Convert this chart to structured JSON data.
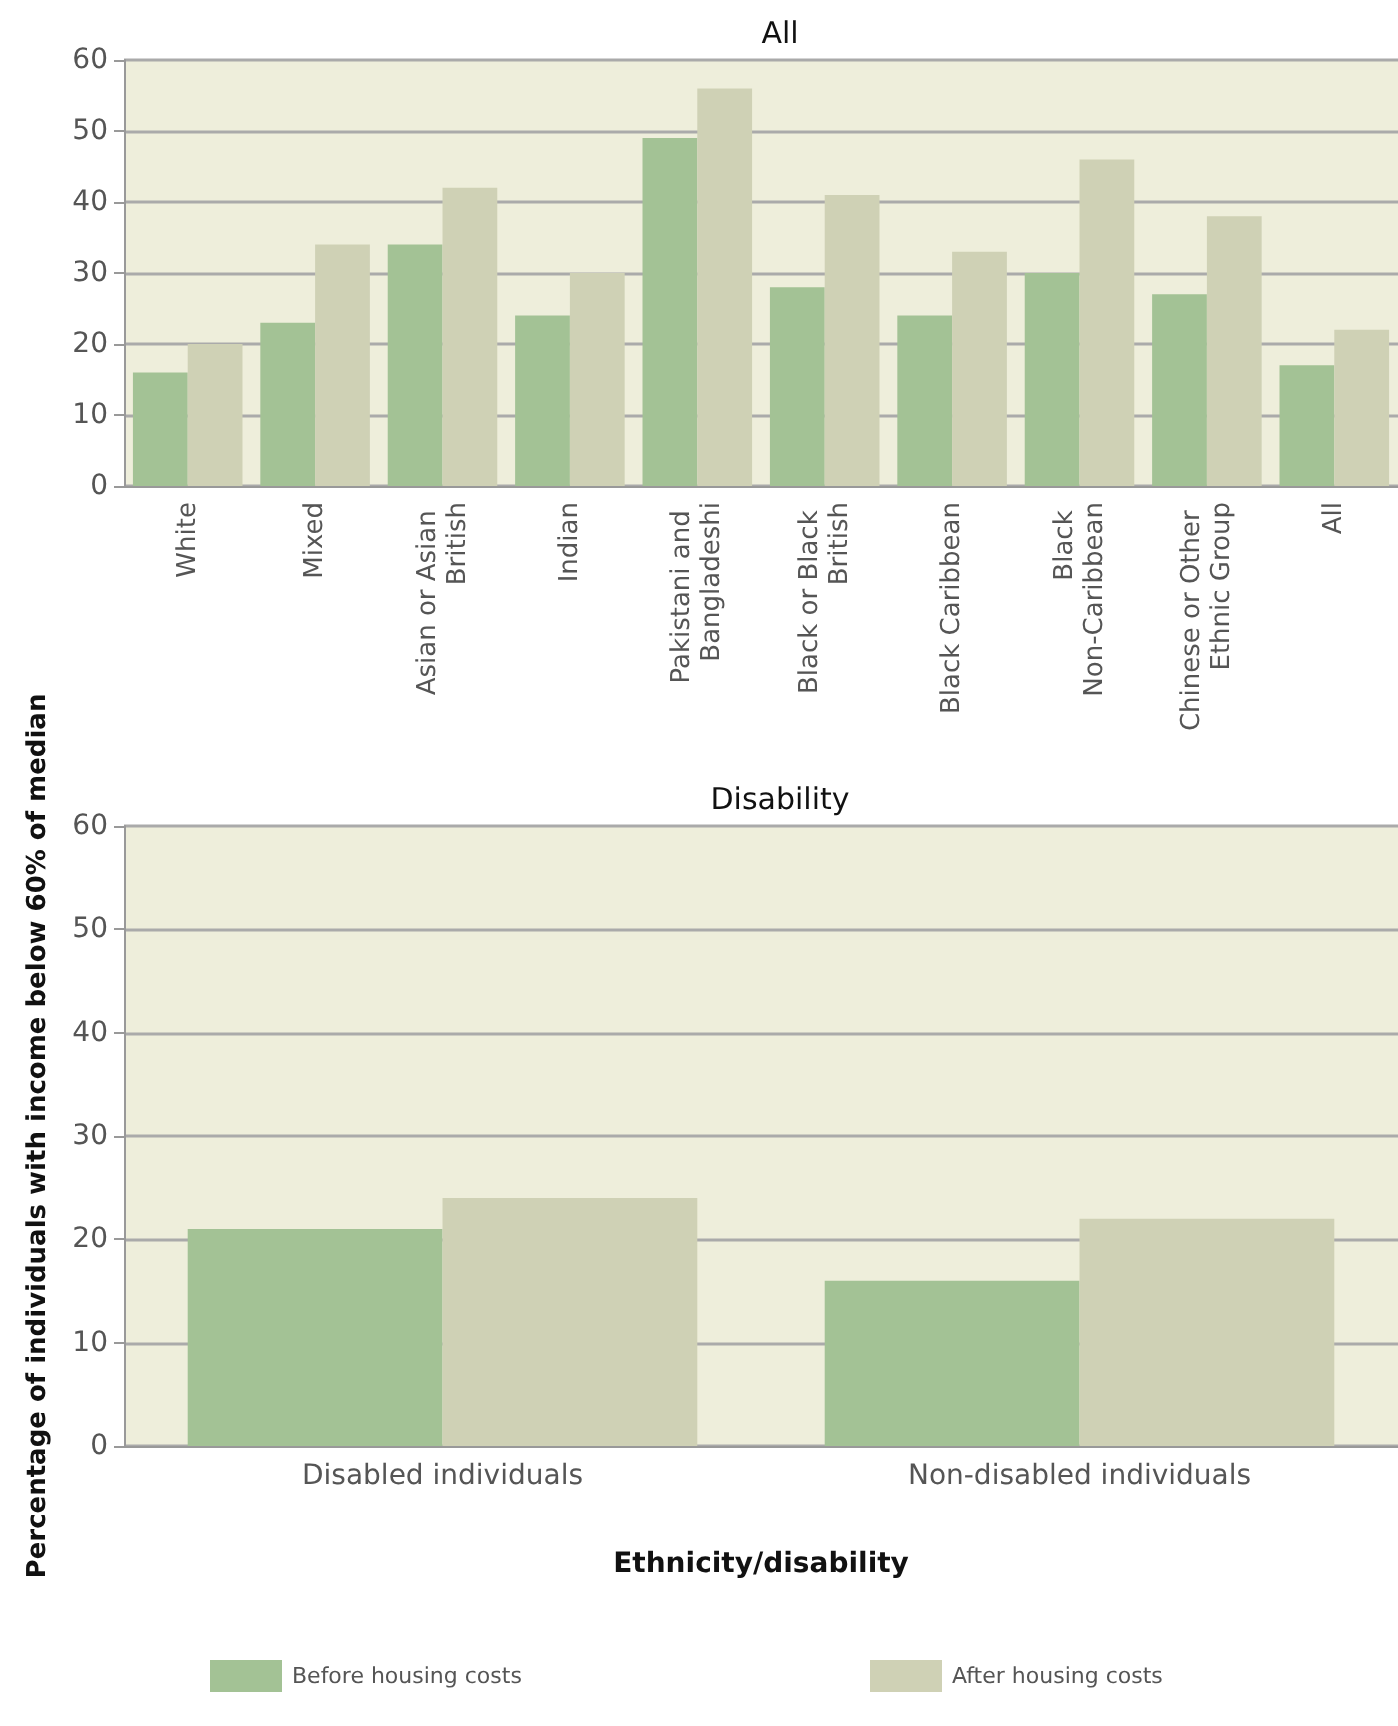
{
  "chart_data": [
    {
      "type": "bar",
      "title": "All",
      "categories": [
        "White",
        "Mixed",
        "Asian or Asian British",
        "Indian",
        "Pakistani and Bangladeshi",
        "Black or Black British",
        "Black Caribbean",
        "Black Non-Caribbean",
        "Chinese or Other Ethnic Group",
        "All"
      ],
      "series": [
        {
          "color": "#a3c295",
          "values": [
            16,
            23,
            34,
            24,
            49,
            28,
            24,
            30,
            27,
            17
          ]
        },
        {
          "color": "#cfd1b5",
          "values": [
            20,
            34,
            42,
            30,
            56,
            41,
            33,
            46,
            38,
            22
          ]
        }
      ],
      "ylim": [
        0,
        60
      ],
      "yticks": [
        0,
        10,
        20,
        30,
        40,
        50,
        60
      ],
      "grid": "y"
    },
    {
      "type": "bar",
      "title": "Disability",
      "xlabel": "Ethnicity/disability",
      "ylabel": "Percentage of individuals with income below 60% of median",
      "categories": [
        "Disabled individuals",
        "Non-disabled individuals"
      ],
      "series": [
        {
          "name": "Before housing costs",
          "color": "#a3c295",
          "values": [
            21,
            16
          ]
        },
        {
          "name": "After housing costs",
          "color": "#cfd1b5",
          "values": [
            24,
            22
          ]
        }
      ],
      "ylim": [
        0,
        60
      ],
      "yticks": [
        0,
        10,
        20,
        30,
        40,
        50,
        60
      ],
      "grid": "y",
      "legend": "bottom"
    }
  ]
}
